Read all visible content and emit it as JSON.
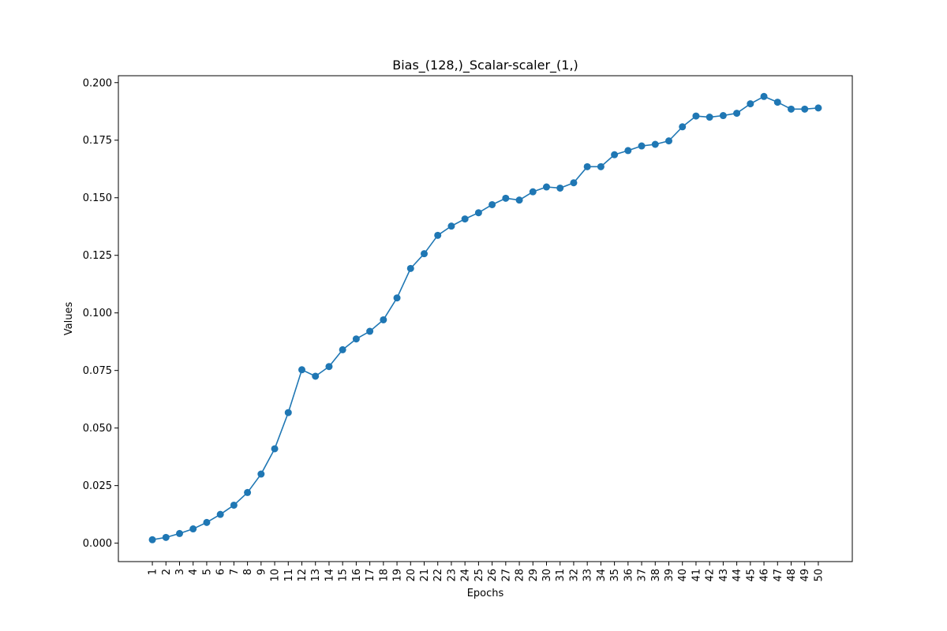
{
  "chart_data": {
    "type": "line",
    "title": "Bias_(128,)_Scalar-scaler_(1,)",
    "xlabel": "Epochs",
    "ylabel": "Values",
    "x": [
      1,
      2,
      3,
      4,
      5,
      6,
      7,
      8,
      9,
      10,
      11,
      12,
      13,
      14,
      15,
      16,
      17,
      18,
      19,
      20,
      21,
      22,
      23,
      24,
      25,
      26,
      27,
      28,
      29,
      30,
      31,
      32,
      33,
      34,
      35,
      36,
      37,
      38,
      39,
      40,
      41,
      42,
      43,
      44,
      45,
      46,
      47,
      48,
      49,
      50
    ],
    "x_tick_labels": [
      "1",
      "2",
      "3",
      "4",
      "5",
      "6",
      "7",
      "8",
      "9",
      "10",
      "11",
      "12",
      "13",
      "14",
      "15",
      "16",
      "17",
      "18",
      "19",
      "20",
      "21",
      "22",
      "23",
      "24",
      "25",
      "26",
      "27",
      "28",
      "29",
      "30",
      "31",
      "32",
      "33",
      "34",
      "35",
      "36",
      "37",
      "38",
      "39",
      "40",
      "41",
      "42",
      "43",
      "44",
      "45",
      "46",
      "47",
      "48",
      "49",
      "50"
    ],
    "y_ticks": [
      0.0,
      0.025,
      0.05,
      0.075,
      0.1,
      0.125,
      0.15,
      0.175,
      0.2
    ],
    "y_tick_labels": [
      "0.000",
      "0.025",
      "0.050",
      "0.075",
      "0.100",
      "0.125",
      "0.150",
      "0.175",
      "0.200"
    ],
    "ylim": [
      -0.008,
      0.203
    ],
    "xlim": [
      -1.5,
      52.5
    ],
    "grid": false,
    "series": [
      {
        "name": "values",
        "color": "#1f77b4",
        "values": [
          0.0015,
          0.0025,
          0.0042,
          0.0062,
          0.009,
          0.0125,
          0.0165,
          0.022,
          0.03,
          0.041,
          0.0567,
          0.0753,
          0.0725,
          0.0767,
          0.084,
          0.0887,
          0.092,
          0.097,
          0.1065,
          0.1193,
          0.1257,
          0.1337,
          0.1377,
          0.1408,
          0.1435,
          0.147,
          0.1498,
          0.149,
          0.1526,
          0.1547,
          0.1542,
          0.1565,
          0.1635,
          0.1635,
          0.1687,
          0.1705,
          0.1725,
          0.1732,
          0.1747,
          0.1808,
          0.1855,
          0.185,
          0.1857,
          0.1867,
          0.1908,
          0.194,
          0.1915,
          0.1885,
          0.1885,
          0.189
        ]
      }
    ]
  }
}
